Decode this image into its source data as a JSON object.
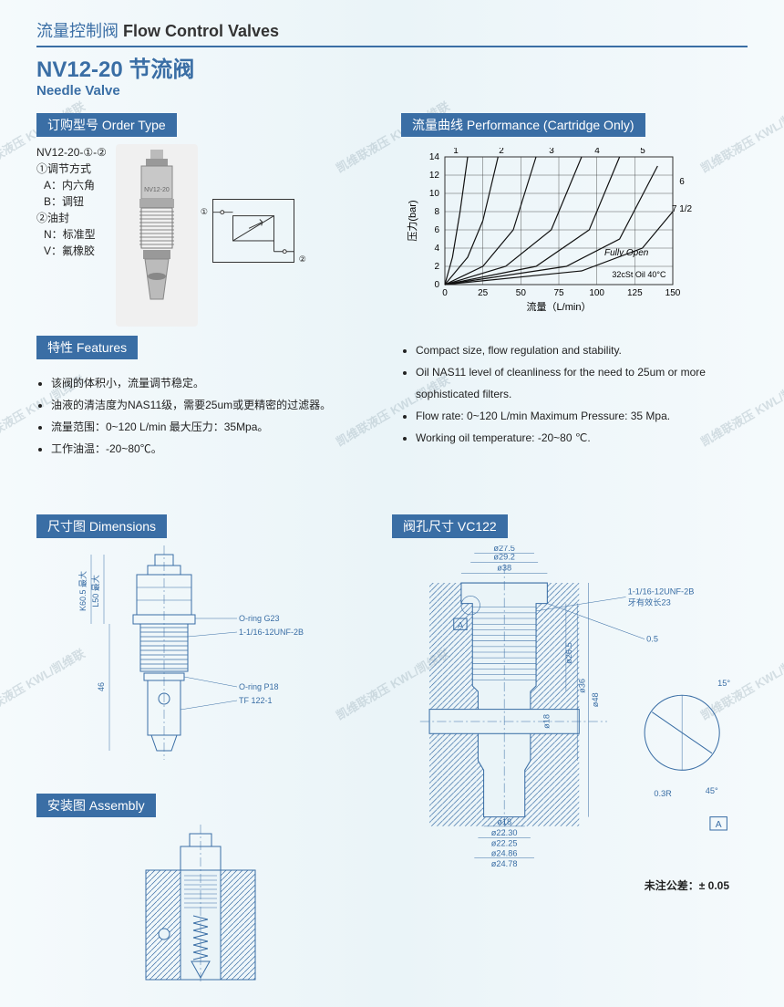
{
  "page_heading_cn": "流量控制阀",
  "page_heading_en": "Flow Control Valves",
  "model": "NV12-20 节流阀",
  "model_sub": "Needle Valve",
  "order_type_label": "订购型号 Order Type",
  "order_text": {
    "line1": "NV12-20-①-②",
    "line2": "①调节方式",
    "line3": "A：内六角",
    "line4": "B：调钮",
    "line5": "②油封",
    "line6": "N：标准型",
    "line7": "V：氟橡胶"
  },
  "perf_label": "流量曲线 Performance (Cartridge Only)",
  "perf_chart": {
    "x_label": "流量（L/min）",
    "y_label": "压力(bar)",
    "x_ticks": [
      0,
      25,
      50,
      75,
      100,
      125,
      150
    ],
    "y_ticks": [
      0,
      2,
      4,
      6,
      8,
      10,
      12,
      14
    ],
    "curve_labels": [
      "1",
      "2",
      "3",
      "4",
      "5",
      "6",
      "7 1/2"
    ],
    "annotation": "Fully Open",
    "oil_note": "32cSt Oil  40°C",
    "curves": [
      [
        [
          0,
          0
        ],
        [
          5,
          3
        ],
        [
          10,
          8
        ],
        [
          15,
          14
        ]
      ],
      [
        [
          0,
          0
        ],
        [
          15,
          3
        ],
        [
          25,
          7
        ],
        [
          35,
          14
        ]
      ],
      [
        [
          0,
          0
        ],
        [
          25,
          2
        ],
        [
          45,
          6
        ],
        [
          60,
          14
        ]
      ],
      [
        [
          0,
          0
        ],
        [
          40,
          2
        ],
        [
          70,
          6
        ],
        [
          90,
          14
        ]
      ],
      [
        [
          0,
          0
        ],
        [
          60,
          2
        ],
        [
          95,
          6
        ],
        [
          115,
          14
        ]
      ],
      [
        [
          0,
          0
        ],
        [
          80,
          2
        ],
        [
          115,
          5
        ],
        [
          140,
          13
        ]
      ],
      [
        [
          0,
          0
        ],
        [
          90,
          1.5
        ],
        [
          130,
          4
        ],
        [
          150,
          8
        ]
      ]
    ]
  },
  "features_label": "特性 Features",
  "features_cn": [
    "该阀的体积小，流量调节稳定。",
    "油液的清洁度为NAS11级，需要25um或更精密的过滤器。",
    "流量范围：0~120 L/min    最大压力：35Mpa。",
    "工作油温：-20~80℃。"
  ],
  "features_en": [
    "Compact size, flow regulation and stability.",
    "Oil NAS11 level of cleanliness for the need to 25um or more sophisticated filters.",
    "Flow rate: 0~120 L/min   Maximum Pressure: 35 Mpa.",
    "Working oil temperature:  -20~80 ℃."
  ],
  "dim_label": "尺寸图 Dimensions",
  "cavity_label": "阀孔尺寸 VC122",
  "assembly_label": "安装图 Assembly",
  "dim_callouts": {
    "k": "K60.5 最大",
    "l": "L50 最大",
    "h": "46",
    "oring1": "O-ring G23",
    "thread": "1-1/16-12UNF-2B",
    "oring2": "O-ring P18",
    "tf": "TF 122-1"
  },
  "cavity_callouts": {
    "d38": "ø38",
    "d292": "ø29.2",
    "d275": "ø27.5",
    "thread": "1-1/16-12UNF-2B",
    "thread_len": "牙有效长23",
    "a_box": "A",
    "h05": "0.5",
    "d265": "ø26.5",
    "d36": "ø36",
    "d48": "ø48",
    "d18_1": "ø18",
    "d18_2": "ø18",
    "d2230": "ø22.30",
    "d2225": "ø22.25",
    "d2486": "ø24.86",
    "d2478": "ø24.78",
    "angle15": "15°",
    "angle45": "45°",
    "r": "0.3R",
    "a_detail": "A"
  },
  "tolerance": "未注公差：± 0.05",
  "watermark_text": "凯维联液压 KWL/凯维联",
  "schematic": {
    "port1": "①",
    "port2": "②"
  },
  "product_label": "NV12-20"
}
